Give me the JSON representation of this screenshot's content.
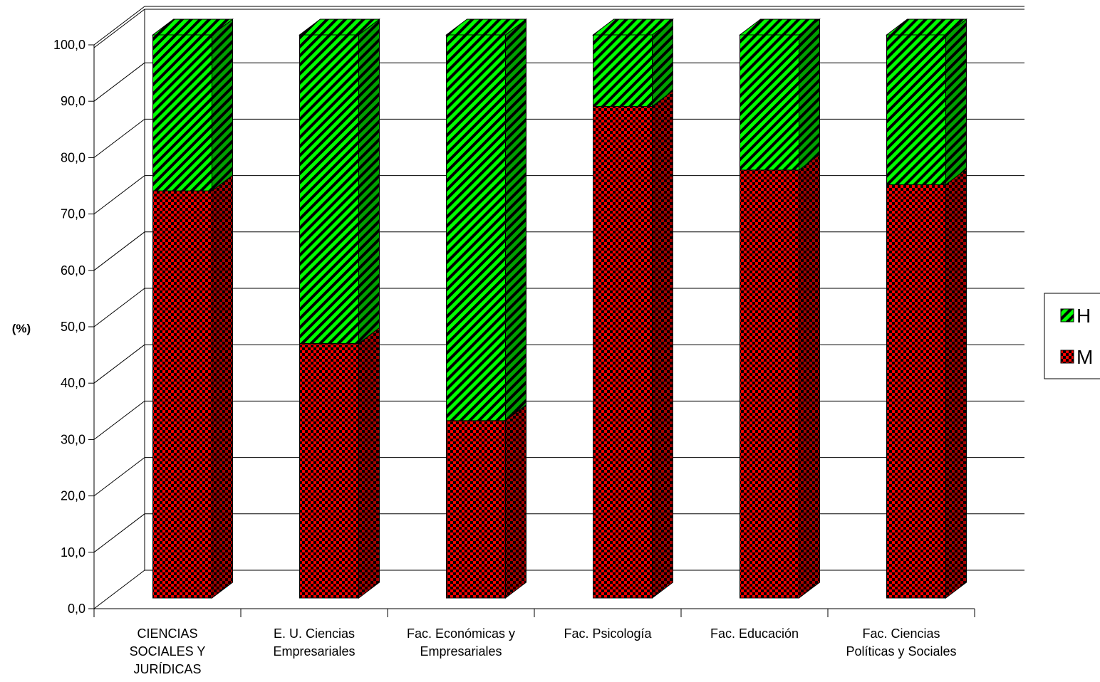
{
  "chart_data": {
    "type": "bar",
    "stacked": true,
    "three_d": true,
    "ylabel": "(%)",
    "ylim": [
      0,
      100
    ],
    "ytick_step": 10,
    "ytick_labels": [
      "0,0",
      "10,0",
      "20,0",
      "30,0",
      "40,0",
      "50,0",
      "60,0",
      "70,0",
      "80,0",
      "90,0",
      "100,0"
    ],
    "categories": [
      [
        "CIENCIAS",
        "SOCIALES Y",
        "JURÍDICAS"
      ],
      [
        "E. U. Ciencias",
        "Empresariales"
      ],
      [
        "Fac. Económicas y",
        "Empresariales"
      ],
      [
        "Fac. Psicología"
      ],
      [
        "Fac. Educación"
      ],
      [
        "Fac. Ciencias",
        "Políticas y Sociales"
      ]
    ],
    "series": [
      {
        "name": "M",
        "values": [
          72.3,
          45.2,
          31.5,
          87.3,
          76.0,
          73.4
        ],
        "color": "#ff0000",
        "pattern": "checker"
      },
      {
        "name": "H",
        "values": [
          27.7,
          54.8,
          68.5,
          12.7,
          24.0,
          26.6
        ],
        "color": "#00ff00",
        "pattern": "diagonal"
      }
    ],
    "legend": {
      "placement": "right",
      "entries": [
        "H",
        "M"
      ]
    },
    "grid": true
  }
}
